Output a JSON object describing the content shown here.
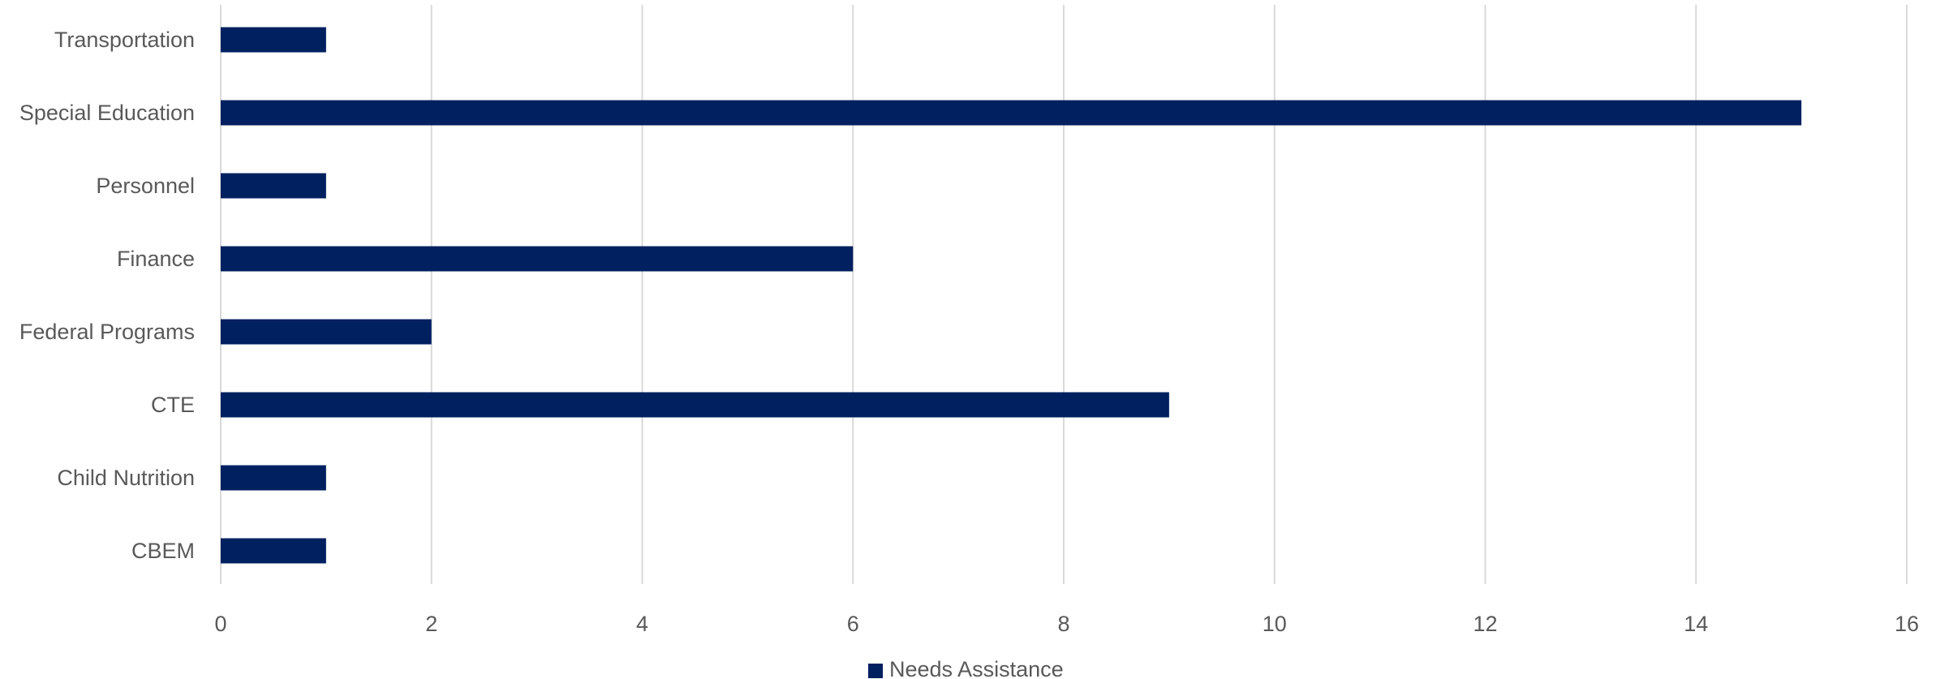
{
  "chart_data": {
    "type": "bar",
    "orientation": "horizontal",
    "categories": [
      "Transportation",
      "Special Education",
      "Personnel",
      "Finance",
      "Federal Programs",
      "CTE",
      "Child Nutrition",
      "CBEM"
    ],
    "series": [
      {
        "name": "Needs Assistance",
        "values": [
          1,
          15,
          1,
          6,
          2,
          9,
          1,
          1
        ],
        "color": "#002060"
      }
    ],
    "xlim": [
      0,
      16
    ],
    "x_ticks": [
      "0",
      "2",
      "4",
      "6",
      "8",
      "10",
      "12",
      "14",
      "16"
    ],
    "grid": true,
    "legend_position": "bottom",
    "title": "",
    "xlabel": "",
    "ylabel": ""
  }
}
